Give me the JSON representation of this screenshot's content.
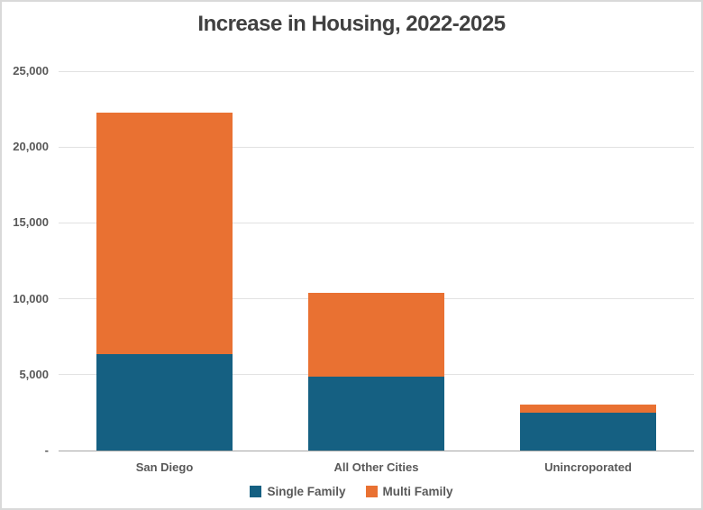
{
  "frame": {
    "background": "#FFFFFF",
    "border_color": "#D9D9D9"
  },
  "chart_data": {
    "type": "bar",
    "stacked": true,
    "title": "Increase in Housing, 2022-2025",
    "categories": [
      "San Diego",
      "All Other Cities",
      "Unincroporated"
    ],
    "series": [
      {
        "name": "Single Family",
        "color": "#156082",
        "values": [
          6350,
          4850,
          2500
        ]
      },
      {
        "name": "Multi Family",
        "color": "#E97132",
        "values": [
          15900,
          5550,
          550
        ]
      }
    ],
    "stack_totals": [
      22250,
      10400,
      3050
    ],
    "xlabel": "",
    "ylabel": "",
    "ylim": [
      0,
      25000
    ],
    "y_ticks": [
      {
        "value": 25000,
        "label": "25,000"
      },
      {
        "value": 20000,
        "label": "20,000"
      },
      {
        "value": 15000,
        "label": "15,000"
      },
      {
        "value": 10000,
        "label": "10,000"
      },
      {
        "value": 5000,
        "label": "5,000"
      },
      {
        "value": 0,
        "label": "-"
      }
    ],
    "grid": true,
    "legend_position": "bottom-center"
  },
  "style": {
    "title_color": "#404040",
    "axis_text_color": "#595959",
    "gridline_color": "#E2E2E2",
    "axis_line_color": "#A6A6A6"
  }
}
